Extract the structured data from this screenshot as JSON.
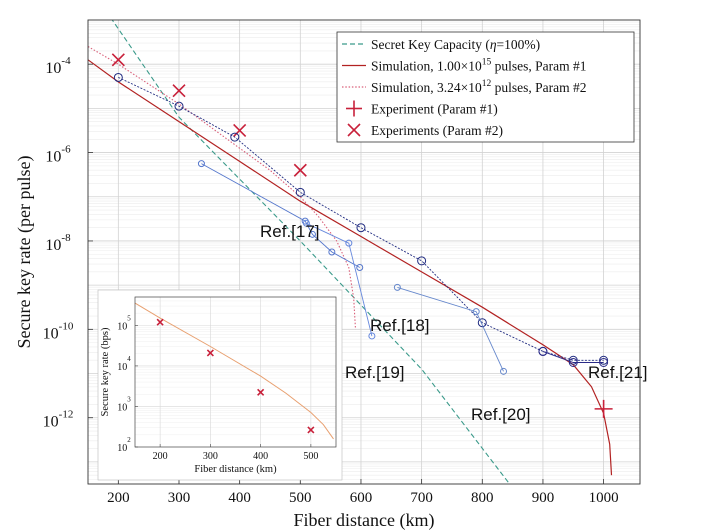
{
  "chart_data": [
    {
      "type": "line",
      "xlabel": "Fiber distance (km)",
      "ylabel": "Secure key rate (per pulse)",
      "xlim": [
        150,
        1060
      ],
      "ylim_log10": [
        -13.5,
        -3
      ],
      "x_ticks": [
        200,
        300,
        400,
        500,
        600,
        700,
        800,
        900,
        1000
      ],
      "y_ticks": [
        {
          "exp": -4,
          "base": "10",
          "power": "-4"
        },
        {
          "exp": -6,
          "base": "10",
          "power": "-6"
        },
        {
          "exp": -8,
          "base": "10",
          "power": "-8"
        },
        {
          "exp": -10,
          "base": "10",
          "power": "-10"
        },
        {
          "exp": -12,
          "base": "10",
          "power": "-12"
        }
      ],
      "grid": true,
      "legend_position": "top-right",
      "legend": [
        {
          "key": "skc",
          "pre": "Secret Key Capacity (",
          "italic": "η",
          "post": "=100%)",
          "color": "#3a9a8a",
          "style": "dashed"
        },
        {
          "key": "sim1",
          "pre": "Simulation, 1.00×10",
          "sup": "15",
          "post": " pulses, Param #1",
          "color": "#b22222",
          "style": "solid"
        },
        {
          "key": "sim2",
          "pre": "Simulation, 3.24×10",
          "sup": "12",
          "post": " pulses, Param #2",
          "color": "#d9607a",
          "style": "dotted"
        },
        {
          "key": "exp1",
          "pre": "Experiment (Param #1)",
          "color": "#c8203a",
          "style": "plus"
        },
        {
          "key": "exp2",
          "pre": "Experiments (Param #2)",
          "color": "#c8203a",
          "style": "cross"
        }
      ],
      "series": [
        {
          "key": "skc",
          "points": [
            [
              150,
              -2.2
            ],
            [
              300,
              -5.2
            ],
            [
              500,
              -8.0
            ],
            [
              700,
              -10.9
            ],
            [
              845,
              -13.5
            ]
          ]
        },
        {
          "key": "sim1",
          "points": [
            [
              150,
              -3.9
            ],
            [
              200,
              -4.4
            ],
            [
              300,
              -5.3
            ],
            [
              400,
              -6.2
            ],
            [
              500,
              -7.1
            ],
            [
              600,
              -7.9
            ],
            [
              700,
              -8.7
            ],
            [
              800,
              -9.5
            ],
            [
              900,
              -10.35
            ],
            [
              950,
              -10.8
            ],
            [
              980,
              -11.3
            ],
            [
              1000,
              -11.9
            ],
            [
              1010,
              -12.6
            ],
            [
              1013,
              -13.3
            ]
          ]
        },
        {
          "key": "sim2",
          "points": [
            [
              150,
              -3.6
            ],
            [
              200,
              -4.0
            ],
            [
              300,
              -4.9
            ],
            [
              400,
              -5.9
            ],
            [
              450,
              -6.4
            ],
            [
              500,
              -7.0
            ],
            [
              530,
              -7.45
            ],
            [
              560,
              -8.0
            ],
            [
              580,
              -8.6
            ],
            [
              588,
              -9.3
            ],
            [
              591,
              -10.0
            ]
          ]
        }
      ],
      "experiment_param1": [
        [
          1000,
          -11.8
        ]
      ],
      "experiment_param2": [
        [
          200,
          -3.9
        ],
        [
          300,
          -4.6
        ],
        [
          400,
          -5.5
        ],
        [
          500,
          -6.4
        ]
      ],
      "references": [
        {
          "label": "Ref.[17]",
          "points": [
            [
              200,
              -4.3
            ],
            [
              300,
              -4.95
            ],
            [
              392,
              -5.65
            ],
            [
              500,
              -6.9
            ],
            [
              600,
              -7.7
            ],
            [
              700,
              -8.45
            ],
            [
              800,
              -9.85
            ],
            [
              900,
              -10.5
            ],
            [
              950,
              -10.7
            ],
            [
              1000,
              -10.7
            ]
          ]
        },
        {
          "label": "Ref.[18]",
          "points": [
            [
              337,
              -6.25
            ],
            [
              508,
              -7.55
            ],
            [
              520,
              -7.85
            ],
            [
              552,
              -8.25
            ],
            [
              598,
              -8.6
            ]
          ]
        },
        {
          "label": "Ref.[19]",
          "points": [
            [
              510,
              -7.6
            ],
            [
              580,
              -8.05
            ],
            [
              618,
              -10.15
            ]
          ]
        },
        {
          "label": "Ref.[20]",
          "points": [
            [
              660,
              -9.05
            ],
            [
              790,
              -9.6
            ],
            [
              835,
              -10.95
            ]
          ]
        },
        {
          "label": "Ref.[21]",
          "points": [
            [
              900,
              -10.5
            ],
            [
              950,
              -10.75
            ],
            [
              1000,
              -10.75
            ]
          ]
        }
      ]
    },
    {
      "type": "line",
      "xlabel": "Fiber distance (km)",
      "ylabel": "Secure key rate (bps)",
      "xlim": [
        150,
        550
      ],
      "ylim_log10": [
        2,
        5.7
      ],
      "x_ticks": [
        200,
        300,
        400,
        500
      ],
      "y_ticks": [
        {
          "exp": 2,
          "base": "10",
          "power": "2"
        },
        {
          "exp": 3,
          "base": "10",
          "power": "3"
        },
        {
          "exp": 4,
          "base": "10",
          "power": "4"
        },
        {
          "exp": 5,
          "base": "10",
          "power": "5"
        }
      ],
      "curve": [
        [
          150,
          5.55
        ],
        [
          200,
          5.18
        ],
        [
          300,
          4.48
        ],
        [
          400,
          3.75
        ],
        [
          450,
          3.33
        ],
        [
          500,
          2.85
        ],
        [
          525,
          2.55
        ],
        [
          545,
          2.2
        ]
      ],
      "experiments": [
        [
          200,
          5.08
        ],
        [
          300,
          4.32
        ],
        [
          400,
          3.35
        ],
        [
          500,
          2.42
        ]
      ]
    }
  ]
}
